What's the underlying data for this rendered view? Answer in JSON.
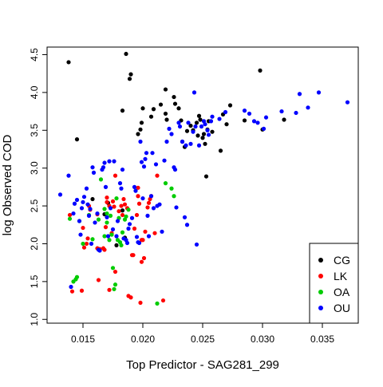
{
  "chart_data": {
    "type": "scatter",
    "title": "",
    "xlabel": "Top Predictor - SAG281_299",
    "ylabel": "log Observed COD",
    "xlim": [
      0.012,
      0.038
    ],
    "ylim": [
      0.95,
      4.6
    ],
    "x_ticks": [
      {
        "value": 0.015,
        "label": "0.015"
      },
      {
        "value": 0.02,
        "label": "0.020"
      },
      {
        "value": 0.025,
        "label": "0.025"
      },
      {
        "value": 0.03,
        "label": "0.030"
      },
      {
        "value": 0.035,
        "label": "0.035"
      }
    ],
    "y_ticks": [
      {
        "value": 1.0,
        "label": "1.0"
      },
      {
        "value": 1.5,
        "label": "1.5"
      },
      {
        "value": 2.0,
        "label": "2.0"
      },
      {
        "value": 2.5,
        "label": "2.5"
      },
      {
        "value": 3.0,
        "label": "3.0"
      },
      {
        "value": 3.5,
        "label": "3.5"
      },
      {
        "value": 4.0,
        "label": "4.0"
      },
      {
        "value": 4.5,
        "label": "4.5"
      }
    ],
    "legend_position": "bottom-right",
    "grid": false,
    "series": [
      {
        "name": "CG",
        "color": "#000000",
        "points": [
          [
            0.0138,
            4.4
          ],
          [
            0.0145,
            3.38
          ],
          [
            0.0186,
            4.51
          ],
          [
            0.019,
            4.24
          ],
          [
            0.0189,
            4.18
          ],
          [
            0.0183,
            3.76
          ],
          [
            0.02,
            3.79
          ],
          [
            0.0199,
            3.6
          ],
          [
            0.0198,
            3.51
          ],
          [
            0.0196,
            3.45
          ],
          [
            0.0207,
            3.68
          ],
          [
            0.0209,
            3.78
          ],
          [
            0.0215,
            3.84
          ],
          [
            0.0219,
            4.04
          ],
          [
            0.0219,
            3.72
          ],
          [
            0.022,
            3.64
          ],
          [
            0.0226,
            3.94
          ],
          [
            0.0227,
            3.85
          ],
          [
            0.023,
            3.79
          ],
          [
            0.0232,
            3.63
          ],
          [
            0.0233,
            3.35
          ],
          [
            0.0235,
            3.28
          ],
          [
            0.0237,
            3.49
          ],
          [
            0.024,
            3.56
          ],
          [
            0.0242,
            3.5
          ],
          [
            0.0245,
            3.6
          ],
          [
            0.0246,
            3.43
          ],
          [
            0.0247,
            3.69
          ],
          [
            0.0248,
            3.64
          ],
          [
            0.025,
            3.4
          ],
          [
            0.0251,
            3.45
          ],
          [
            0.0252,
            3.32
          ],
          [
            0.0253,
            2.89
          ],
          [
            0.0254,
            3.51
          ],
          [
            0.0255,
            3.62
          ],
          [
            0.0258,
            3.48
          ],
          [
            0.0265,
            3.23
          ],
          [
            0.0267,
            3.71
          ],
          [
            0.027,
            3.58
          ],
          [
            0.0273,
            3.83
          ],
          [
            0.0285,
            3.63
          ],
          [
            0.0298,
            4.29
          ],
          [
            0.03,
            3.51
          ],
          [
            0.0318,
            3.64
          ],
          [
            0.0158,
            2.59
          ],
          [
            0.0168,
            2.39
          ],
          [
            0.0171,
            2.54
          ],
          [
            0.0178,
            1.98
          ],
          [
            0.0183,
            2.44
          ],
          [
            0.0185,
            2.08
          ]
        ]
      },
      {
        "name": "LK",
        "color": "#ff0000",
        "points": [
          [
            0.0139,
            2.38
          ],
          [
            0.0141,
            1.37
          ],
          [
            0.0149,
            1.38
          ],
          [
            0.015,
            2.21
          ],
          [
            0.0151,
            1.95
          ],
          [
            0.0153,
            2.0
          ],
          [
            0.0154,
            2.07
          ],
          [
            0.0155,
            2.5
          ],
          [
            0.0156,
            2.45
          ],
          [
            0.0162,
            2.39
          ],
          [
            0.0162,
            1.94
          ],
          [
            0.0163,
            1.52
          ],
          [
            0.0164,
            1.93
          ],
          [
            0.0167,
            1.94
          ],
          [
            0.0168,
            1.92
          ],
          [
            0.0169,
            2.22
          ],
          [
            0.017,
            2.55
          ],
          [
            0.017,
            2.61
          ],
          [
            0.0172,
            2.5
          ],
          [
            0.0172,
            1.39
          ],
          [
            0.0174,
            2.14
          ],
          [
            0.0175,
            2.56
          ],
          [
            0.0176,
            2.49
          ],
          [
            0.0177,
            2.9
          ],
          [
            0.0177,
            1.63
          ],
          [
            0.018,
            2.43
          ],
          [
            0.0182,
            2.5
          ],
          [
            0.0183,
            2.38
          ],
          [
            0.0184,
            2.59
          ],
          [
            0.0185,
            2.52
          ],
          [
            0.0187,
            2.47
          ],
          [
            0.0188,
            1.31
          ],
          [
            0.019,
            1.29
          ],
          [
            0.0191,
            1.85
          ],
          [
            0.0192,
            1.85
          ],
          [
            0.0193,
            2.2
          ],
          [
            0.0195,
            2.38
          ],
          [
            0.0196,
            2.63
          ],
          [
            0.0196,
            2.74
          ],
          [
            0.0197,
            2.53
          ],
          [
            0.0198,
            1.22
          ],
          [
            0.0199,
            1.76
          ],
          [
            0.0199,
            2.05
          ],
          [
            0.02,
            2.05
          ],
          [
            0.0201,
            1.81
          ],
          [
            0.0202,
            2.16
          ],
          [
            0.0204,
            2.48
          ],
          [
            0.0205,
            2.54
          ],
          [
            0.0206,
            2.59
          ],
          [
            0.0207,
            2.63
          ],
          [
            0.021,
            2.14
          ],
          [
            0.0212,
            2.9
          ],
          [
            0.0217,
            1.25
          ]
        ]
      },
      {
        "name": "OA",
        "color": "#00cc00",
        "points": [
          [
            0.0139,
            2.33
          ],
          [
            0.0142,
            1.5
          ],
          [
            0.0144,
            1.53
          ],
          [
            0.0145,
            1.56
          ],
          [
            0.0147,
            2.3
          ],
          [
            0.0155,
            2.38
          ],
          [
            0.0163,
            2.32
          ],
          [
            0.0165,
            2.85
          ],
          [
            0.0168,
            2.1
          ],
          [
            0.0168,
            2.46
          ],
          [
            0.017,
            2.28
          ],
          [
            0.017,
            2.4
          ],
          [
            0.0172,
            2.05
          ],
          [
            0.0174,
            2.12
          ],
          [
            0.0175,
            1.68
          ],
          [
            0.0176,
            1.4
          ],
          [
            0.0177,
            1.46
          ],
          [
            0.0178,
            2.6
          ],
          [
            0.0179,
            2.05
          ],
          [
            0.018,
            2.34
          ],
          [
            0.0181,
            2.02
          ],
          [
            0.0183,
            2.15
          ],
          [
            0.0185,
            2.32
          ],
          [
            0.0186,
            2.36
          ],
          [
            0.0188,
            2.45
          ],
          [
            0.0212,
            1.21
          ],
          [
            0.0219,
            2.8
          ],
          [
            0.0224,
            2.73
          ],
          [
            0.0226,
            2.63
          ],
          [
            0.015,
            2.0
          ],
          [
            0.0158,
            2.06
          ],
          [
            0.0173,
            2.37
          ],
          [
            0.0182,
            1.98
          ]
        ]
      },
      {
        "name": "OU",
        "color": "#0000ff",
        "points": [
          [
            0.0131,
            2.65
          ],
          [
            0.0138,
            2.9
          ],
          [
            0.014,
            1.43
          ],
          [
            0.0142,
            2.4
          ],
          [
            0.0143,
            2.53
          ],
          [
            0.0145,
            2.58
          ],
          [
            0.0147,
            2.3
          ],
          [
            0.0148,
            2.12
          ],
          [
            0.0149,
            2.47
          ],
          [
            0.015,
            2.55
          ],
          [
            0.0151,
            2.62
          ],
          [
            0.0153,
            2.73
          ],
          [
            0.0154,
            2.52
          ],
          [
            0.0155,
            2.37
          ],
          [
            0.0156,
            2.46
          ],
          [
            0.0157,
            2.0
          ],
          [
            0.0158,
            3.01
          ],
          [
            0.0159,
            2.94
          ],
          [
            0.016,
            2.28
          ],
          [
            0.0162,
            2.4
          ],
          [
            0.0163,
            1.92
          ],
          [
            0.0164,
            1.91
          ],
          [
            0.0166,
            2.98
          ],
          [
            0.0167,
            3.01
          ],
          [
            0.0168,
            3.07
          ],
          [
            0.0169,
            2.75
          ],
          [
            0.017,
            2.35
          ],
          [
            0.0171,
            2.1
          ],
          [
            0.0172,
            3.09
          ],
          [
            0.0173,
            2.47
          ],
          [
            0.0175,
            2.19
          ],
          [
            0.0176,
            3.09
          ],
          [
            0.0178,
            2.1
          ],
          [
            0.0179,
            2.3
          ],
          [
            0.0181,
            2.8
          ],
          [
            0.0182,
            2.73
          ],
          [
            0.0183,
            2.98
          ],
          [
            0.0184,
            2.07
          ],
          [
            0.0186,
            2.05
          ],
          [
            0.0187,
            2.01
          ],
          [
            0.0188,
            2.2
          ],
          [
            0.0189,
            2.26
          ],
          [
            0.0191,
            2.34
          ],
          [
            0.0193,
            2.75
          ],
          [
            0.0194,
            2.7
          ],
          [
            0.0195,
            2.09
          ],
          [
            0.0196,
            2.02
          ],
          [
            0.0197,
            2.01
          ],
          [
            0.0198,
            3.35
          ],
          [
            0.0199,
            3.08
          ],
          [
            0.02,
            2.6
          ],
          [
            0.0201,
            3.02
          ],
          [
            0.0202,
            3.12
          ],
          [
            0.0203,
            3.2
          ],
          [
            0.0204,
            2.37
          ],
          [
            0.0205,
            2.1
          ],
          [
            0.0207,
            2.63
          ],
          [
            0.0208,
            3.2
          ],
          [
            0.0209,
            2.47
          ],
          [
            0.0211,
            3.05
          ],
          [
            0.0212,
            2.5
          ],
          [
            0.0214,
            2.52
          ],
          [
            0.0216,
            2.16
          ],
          [
            0.0218,
            3.1
          ],
          [
            0.022,
            3.35
          ],
          [
            0.0222,
            3.52
          ],
          [
            0.0224,
            3.45
          ],
          [
            0.0226,
            3.01
          ],
          [
            0.0227,
            2.98
          ],
          [
            0.0228,
            2.48
          ],
          [
            0.023,
            3.6
          ],
          [
            0.0231,
            3.55
          ],
          [
            0.0233,
            3.35
          ],
          [
            0.0235,
            2.35
          ],
          [
            0.0236,
            3.3
          ],
          [
            0.0237,
            2.25
          ],
          [
            0.0238,
            3.6
          ],
          [
            0.024,
            3.32
          ],
          [
            0.0242,
            3.48
          ],
          [
            0.0243,
            4.0
          ],
          [
            0.0244,
            3.55
          ],
          [
            0.0245,
            1.99
          ],
          [
            0.0247,
            3.3
          ],
          [
            0.0249,
            3.55
          ],
          [
            0.0251,
            3.62
          ],
          [
            0.0252,
            3.58
          ],
          [
            0.0254,
            3.5
          ],
          [
            0.0255,
            3.44
          ],
          [
            0.0257,
            3.62
          ],
          [
            0.0258,
            3.68
          ],
          [
            0.0264,
            3.65
          ],
          [
            0.0269,
            3.74
          ],
          [
            0.0285,
            3.76
          ],
          [
            0.0289,
            3.72
          ],
          [
            0.0293,
            3.62
          ],
          [
            0.0296,
            3.6
          ],
          [
            0.0301,
            3.52
          ],
          [
            0.0303,
            3.67
          ],
          [
            0.0316,
            3.75
          ],
          [
            0.0328,
            3.73
          ],
          [
            0.0331,
            3.98
          ],
          [
            0.0338,
            3.8
          ],
          [
            0.0347,
            4.0
          ],
          [
            0.0371,
            3.87
          ]
        ]
      }
    ]
  }
}
